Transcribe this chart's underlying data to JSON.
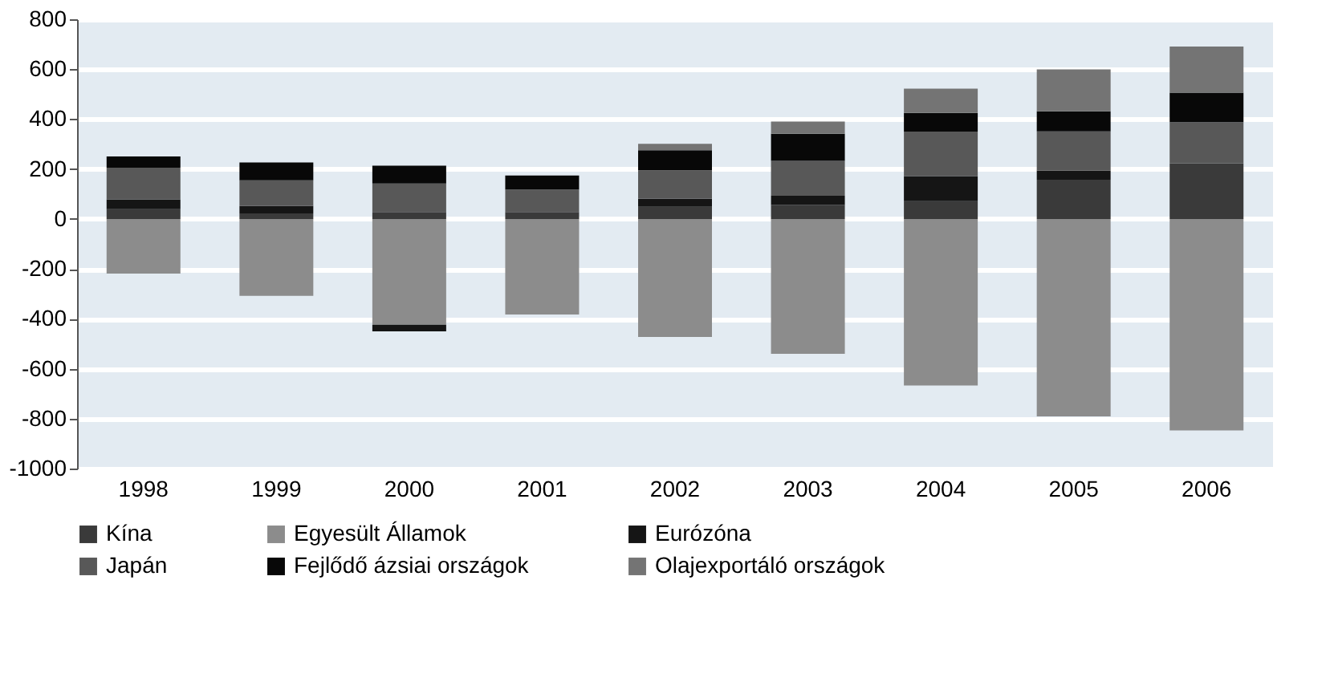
{
  "chart_data": {
    "type": "bar",
    "stacked": true,
    "categories": [
      "1998",
      "1999",
      "2000",
      "2001",
      "2002",
      "2003",
      "2004",
      "2005",
      "2006"
    ],
    "series": [
      {
        "name": "Kína",
        "color": "#3a3a3a",
        "values": [
          39,
          22,
          28,
          28,
          49,
          56,
          71,
          157,
          222
        ]
      },
      {
        "name": "Egyesült Államok",
        "color": "#8c8c8c",
        "values": [
          -219,
          -308,
          -424,
          -383,
          -473,
          -540,
          -667,
          -791,
          -847
        ]
      },
      {
        "name": "Eurózóna",
        "color": "#151515",
        "values": [
          39,
          30,
          -26,
          0,
          32,
          37,
          101,
          37,
          0
        ]
      },
      {
        "name": "Japán",
        "color": "#585858",
        "values": [
          127,
          103,
          114,
          90,
          114,
          140,
          178,
          157,
          166
        ]
      },
      {
        "name": "Fejlődő ázsiai országok",
        "color": "#080808",
        "values": [
          45,
          71,
          71,
          56,
          80,
          108,
          75,
          80,
          118
        ]
      },
      {
        "name": "Olajexportáló országok",
        "color": "#747474",
        "values": [
          0,
          0,
          0,
          0,
          26,
          49,
          97,
          168,
          185
        ]
      }
    ],
    "ylim": [
      -1000,
      800
    ],
    "yticks": [
      -1000,
      -800,
      -600,
      -400,
      -200,
      0,
      200,
      400,
      600,
      800
    ],
    "grid": "y",
    "legend": "bottom"
  }
}
